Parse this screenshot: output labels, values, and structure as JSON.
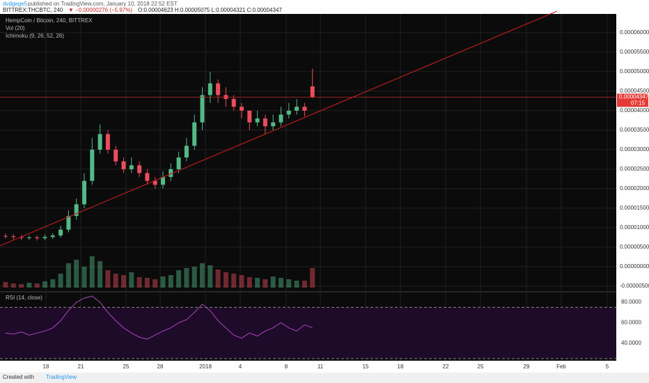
{
  "header": {
    "author": "dvdgege5",
    "published": "published on TradingView.com, January 10, 2018 22:52 EST",
    "symbol": "BITTREX:THCBTC, 240",
    "change": "▼ −0.00000276 (−5.97%)",
    "ohlc": "O:0.00004623 H:0.00005075 L:0.00004321 C:0.00004347"
  },
  "chart_data": [
    {
      "type": "candlestick",
      "title": "HempCoin / Bitcoin, 240, BITTREX",
      "indicators": [
        "Vol (20)",
        "Ichimoku (9, 26, 52, 26)"
      ],
      "open": [
        7.9e-06,
        7.8e-06,
        7.6e-06,
        7.4e-06,
        7.5e-06,
        7.3e-06,
        7.6e-06,
        8e-06,
        9.5e-06,
        1.3e-05,
        1.6e-05,
        2.2e-05,
        3e-05,
        3.4e-05,
        3e-05,
        2.7e-05,
        2.5e-05,
        2.6e-05,
        2.4e-05,
        2.2e-05,
        2.1e-05,
        2.3e-05,
        2.5e-05,
        2.8e-05,
        3.1e-05,
        3.7e-05,
        4.4e-05,
        4.7e-05,
        4.4e-05,
        4.3e-05,
        4.1e-05,
        4e-05,
        3.7e-05,
        3.8e-05,
        3.6e-05,
        3.7e-05,
        3.9e-05,
        4e-05,
        4.1e-05,
        4.623e-05
      ],
      "high": [
        8.5e-06,
        8.3e-06,
        8.1e-06,
        8e-06,
        8e-06,
        8.2e-06,
        8.6e-06,
        1.05e-05,
        1.45e-05,
        1.75e-05,
        2.4e-05,
        3.3e-05,
        3.65e-05,
        3.5e-05,
        3.1e-05,
        2.8e-05,
        2.8e-05,
        2.7e-05,
        2.5e-05,
        2.3e-05,
        2.45e-05,
        2.65e-05,
        2.95e-05,
        3.3e-05,
        3.9e-05,
        4.6e-05,
        5e-05,
        4.8e-05,
        4.6e-05,
        4.4e-05,
        4.2e-05,
        4e-05,
        4e-05,
        3.9e-05,
        3.9e-05,
        4.1e-05,
        4.2e-05,
        4.3e-05,
        4.2e-05,
        5.075e-05
      ],
      "low": [
        7.2e-06,
        7e-06,
        6.8e-06,
        6.9e-06,
        6.7e-06,
        6.8e-06,
        7.1e-06,
        7.5e-06,
        8.8e-06,
        1.2e-05,
        1.5e-05,
        2.1e-05,
        2.9e-05,
        2.9e-05,
        2.6e-05,
        2.4e-05,
        2.4e-05,
        2.3e-05,
        2.1e-05,
        2e-05,
        2e-05,
        2.2e-05,
        2.4e-05,
        2.7e-05,
        3e-05,
        3.5e-05,
        4.2e-05,
        4.2e-05,
        4.1e-05,
        4e-05,
        3.8e-05,
        3.5e-05,
        3.6e-05,
        3.4e-05,
        3.5e-05,
        3.6e-05,
        3.8e-05,
        3.9e-05,
        3.85e-05,
        4.321e-05
      ],
      "close": [
        7.8e-06,
        7.6e-06,
        7.4e-06,
        7.5e-06,
        7.3e-06,
        7.6e-06,
        8e-06,
        9.5e-06,
        1.3e-05,
        1.6e-05,
        2.2e-05,
        3e-05,
        3.4e-05,
        3e-05,
        2.7e-05,
        2.5e-05,
        2.6e-05,
        2.4e-05,
        2.2e-05,
        2.1e-05,
        2.3e-05,
        2.5e-05,
        2.8e-05,
        3.1e-05,
        3.7e-05,
        4.4e-05,
        4.7e-05,
        4.4e-05,
        4.3e-05,
        4.1e-05,
        4e-05,
        3.7e-05,
        3.8e-05,
        3.6e-05,
        3.7e-05,
        3.9e-05,
        4e-05,
        4.1e-05,
        4e-05,
        4.347e-05
      ],
      "volume": [
        8,
        6,
        5,
        7,
        6,
        9,
        12,
        20,
        35,
        40,
        30,
        45,
        38,
        25,
        20,
        18,
        22,
        15,
        14,
        12,
        16,
        18,
        25,
        28,
        30,
        35,
        32,
        26,
        22,
        20,
        18,
        15,
        14,
        12,
        16,
        14,
        12,
        10,
        10,
        28
      ],
      "up_color": "#53b987",
      "down_color": "#eb4d5c",
      "ylim": [
        -6.25e-06,
        6.48e-05
      ],
      "yticks": [
        {
          "value": -5e-06,
          "label": "-0.00000500"
        },
        {
          "value": 0,
          "label": "0.00000000"
        },
        {
          "value": 5e-06,
          "label": "0.00000500"
        },
        {
          "value": 1e-05,
          "label": "0.00001000"
        },
        {
          "value": 1.5e-05,
          "label": "0.00001500"
        },
        {
          "value": 2e-05,
          "label": "0.00002000"
        },
        {
          "value": 2.5e-05,
          "label": "0.00002500"
        },
        {
          "value": 3e-05,
          "label": "0.00003000"
        },
        {
          "value": 3.5e-05,
          "label": "0.00003500"
        },
        {
          "value": 4e-05,
          "label": "0.00004000"
        },
        {
          "value": 4.5e-05,
          "label": "0.00004500"
        },
        {
          "value": 5e-05,
          "label": "0.00005000"
        },
        {
          "value": 5.5e-05,
          "label": "0.00005500"
        },
        {
          "value": 6e-05,
          "label": "0.00006000"
        }
      ],
      "x_labels": [
        "18",
        "21",
        "25",
        "28",
        "2018",
        "4",
        "8",
        "11",
        "15",
        "18",
        "22",
        "25",
        "29",
        "Feb",
        "5"
      ],
      "last_price_label": "0.00004347",
      "countdown": "07:15",
      "grid": true
    },
    {
      "type": "line",
      "title": "RSI (14, close)",
      "values": [
        50,
        49,
        51,
        48,
        50,
        52,
        55,
        62,
        72,
        80,
        84,
        86,
        80,
        70,
        62,
        55,
        50,
        46,
        44,
        48,
        52,
        55,
        60,
        63,
        70,
        78,
        72,
        62,
        55,
        48,
        45,
        50,
        47,
        52,
        55,
        60,
        55,
        52,
        58,
        55
      ],
      "color": "#ab47bc",
      "ylim": [
        23,
        89.5
      ],
      "yticks": [
        {
          "value": 40,
          "label": "40.0000"
        },
        {
          "value": 60,
          "label": "60.0000"
        },
        {
          "value": 80,
          "label": "80.0000"
        }
      ],
      "bands": [
        75,
        25
      ]
    }
  ],
  "footer": {
    "created": "Created with",
    "brand": "TradingView"
  }
}
